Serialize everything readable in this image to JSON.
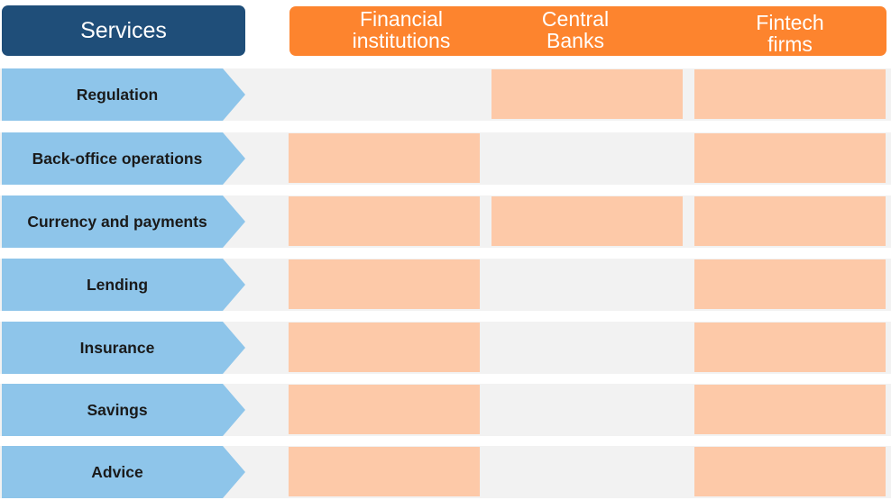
{
  "header": {
    "services_label": "Services",
    "columns": [
      {
        "line1": "Financial",
        "line2": "institutions"
      },
      {
        "line1": "Central",
        "line2": "Banks"
      },
      {
        "line1": "Fintech",
        "line2": "firms"
      }
    ]
  },
  "rows": [
    {
      "label": "Regulation",
      "cells": [
        false,
        true,
        true
      ]
    },
    {
      "label": "Back-office operations",
      "cells": [
        true,
        false,
        true
      ]
    },
    {
      "label": "Currency and payments",
      "cells": [
        true,
        true,
        true
      ]
    },
    {
      "label": "Lending",
      "cells": [
        true,
        false,
        true
      ]
    },
    {
      "label": "Insurance",
      "cells": [
        true,
        false,
        true
      ]
    },
    {
      "label": "Savings",
      "cells": [
        true,
        false,
        true
      ]
    },
    {
      "label": "Advice",
      "cells": [
        true,
        false,
        true
      ]
    }
  ],
  "colors": {
    "services_header": "#1f4e79",
    "column_header": "#fd842e",
    "row_label": "#8ec5ea",
    "row_background": "#f2f2f2",
    "highlight_cell": "#fdc9a8"
  }
}
